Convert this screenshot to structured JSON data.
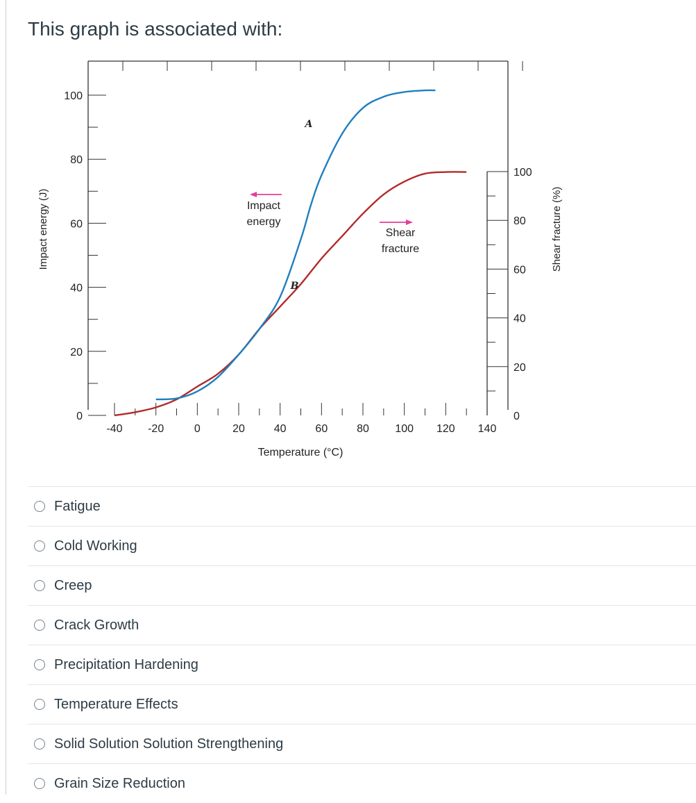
{
  "question": {
    "text": "This graph is associated with:"
  },
  "chart_data": {
    "type": "line",
    "xlabel": "Temperature (°C)",
    "ylabel_left": "Impact energy (J)",
    "ylabel_right": "Shear fracture (%)",
    "xlim": [
      -40,
      140
    ],
    "ylim_left": [
      0,
      100
    ],
    "ylim_right": [
      0,
      100
    ],
    "x_ticks": [
      -40,
      -20,
      0,
      20,
      40,
      60,
      80,
      100,
      120,
      140
    ],
    "y_left_ticks": [
      0,
      20,
      40,
      60,
      80,
      100
    ],
    "y_right_ticks": [
      0,
      20,
      40,
      60,
      80,
      100
    ],
    "series": [
      {
        "name": "A",
        "label": "A",
        "axis": "left",
        "color": "#1f7fbf",
        "x": [
          -20,
          -10,
          0,
          10,
          20,
          30,
          40,
          50,
          55,
          60,
          70,
          80,
          90,
          100,
          110,
          115
        ],
        "y": [
          5,
          5.3,
          7.5,
          12,
          19,
          27,
          37,
          55,
          66,
          75,
          88,
          96,
          99.5,
          101,
          101.5,
          101.5
        ]
      },
      {
        "name": "B",
        "label": "B",
        "axis": "left",
        "color": "#b22a2a",
        "x": [
          -40,
          -30,
          -20,
          -10,
          0,
          10,
          20,
          30,
          40,
          50,
          60,
          70,
          80,
          90,
          100,
          110,
          120,
          130
        ],
        "y": [
          0,
          1,
          2.5,
          5,
          9,
          13,
          19,
          27,
          34,
          41,
          49,
          56,
          63,
          69,
          73,
          75.5,
          76,
          76
        ]
      }
    ],
    "annotations": [
      {
        "text_lines": [
          "Impact",
          "energy"
        ],
        "arrow": "left",
        "arrow_color": "#e0409a"
      },
      {
        "text_lines": [
          "Shear",
          "fracture"
        ],
        "arrow": "right",
        "arrow_color": "#e0409a"
      }
    ]
  },
  "answers": [
    "Fatigue",
    "Cold Working",
    "Creep",
    "Crack Growth",
    "Precipitation Hardening",
    "Temperature Effects",
    "Solid Solution Solution Strengthening",
    "Grain Size Reduction"
  ]
}
